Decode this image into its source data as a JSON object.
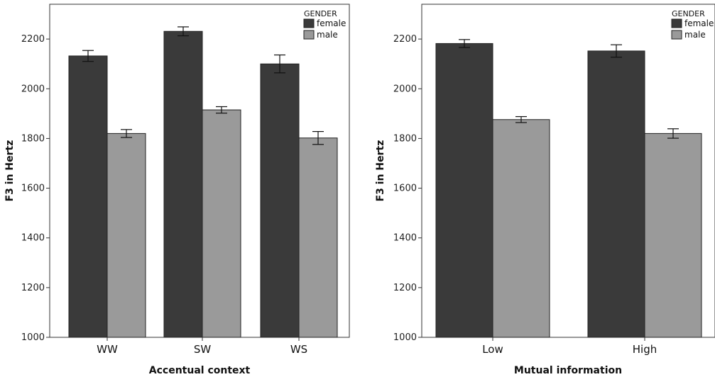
{
  "chart_data": [
    {
      "type": "bar",
      "xlabel": "Accentual context",
      "ylabel": "F3 in Hertz",
      "ylim": [
        1000,
        2340
      ],
      "yticks": [
        1000,
        1200,
        1400,
        1600,
        1800,
        2000,
        2200
      ],
      "categories": [
        "WW",
        "SW",
        "WS"
      ],
      "legend_title": "GENDER",
      "legend_position": "top-right",
      "grid": false,
      "series": [
        {
          "name": "female",
          "color": "#3a3a3a",
          "values": [
            2132,
            2231,
            2100
          ],
          "error": [
            22,
            18,
            36
          ]
        },
        {
          "name": "male",
          "color": "#9a9a9a",
          "values": [
            1820,
            1915,
            1802
          ],
          "error": [
            16,
            13,
            26
          ]
        }
      ]
    },
    {
      "type": "bar",
      "xlabel": "Mutual information",
      "ylabel": "F3 in Hertz",
      "ylim": [
        1000,
        2340
      ],
      "yticks": [
        1000,
        1200,
        1400,
        1600,
        1800,
        2000,
        2200
      ],
      "categories": [
        "Low",
        "High"
      ],
      "legend_title": "GENDER",
      "legend_position": "top-right",
      "grid": false,
      "series": [
        {
          "name": "female",
          "color": "#3a3a3a",
          "values": [
            2182,
            2152
          ],
          "error": [
            16,
            25
          ]
        },
        {
          "name": "male",
          "color": "#9a9a9a",
          "values": [
            1876,
            1820
          ],
          "error": [
            12,
            19
          ]
        }
      ]
    }
  ]
}
